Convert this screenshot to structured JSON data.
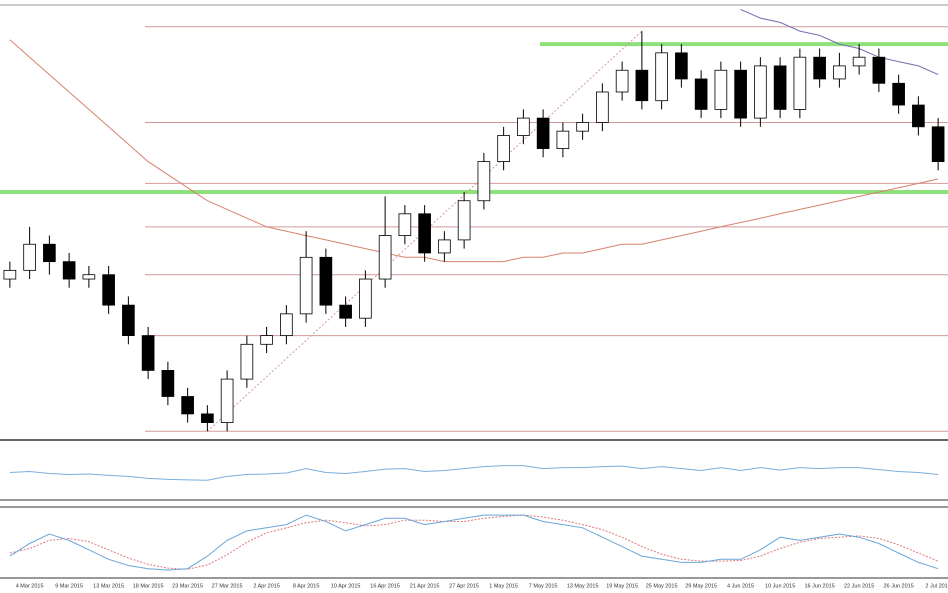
{
  "chart_data": {
    "type": "candlestick",
    "x": [
      null,
      "4 Mar 2015",
      null,
      "9 Mar 2015",
      null,
      "13 Mar 2015",
      null,
      "18 Mar 2015",
      null,
      "23 Mar 2015",
      null,
      "27 Mar 2015",
      null,
      "2 Apr 2015",
      null,
      "8 Apr 2015",
      null,
      "10 Apr 2015",
      null,
      "16 Apr 2015",
      null,
      "21 Apr 2015",
      null,
      "27 Apr 2015",
      null,
      "1 May 2015",
      null,
      "7 May 2015",
      null,
      "13 May 2015",
      null,
      "19 May 2015",
      null,
      "25 May 2015",
      null,
      "29 May 2015",
      null,
      "4 Jun 2015",
      null,
      "10 Jun 2015",
      null,
      "16 Jun 2015",
      null,
      "22 Jun 2015",
      null,
      "26 Jun 2015",
      null,
      "2 Jul 2015"
    ],
    "open": [
      37,
      39,
      45,
      41,
      37,
      38,
      31,
      24,
      16,
      10,
      6,
      4,
      14,
      22,
      24,
      29,
      42,
      31,
      28,
      37,
      47,
      52,
      43,
      46,
      55,
      64,
      70,
      74,
      67,
      71,
      73,
      80,
      85,
      78,
      89,
      83,
      76,
      85,
      74,
      86,
      76,
      88,
      83,
      86,
      88,
      82,
      77,
      72
    ],
    "high": [
      41,
      49,
      47,
      43,
      40,
      40,
      33,
      26,
      18,
      12,
      8,
      16,
      24,
      26,
      31,
      48,
      44,
      33,
      39,
      56,
      54,
      54,
      48,
      57,
      66,
      72,
      76,
      76,
      73,
      75,
      82,
      87,
      94,
      91,
      91,
      85,
      87,
      87,
      88,
      88,
      90,
      90,
      89,
      91,
      90,
      84,
      79,
      74
    ],
    "low": [
      35,
      37,
      38,
      35,
      35,
      29,
      22,
      14,
      8,
      4,
      2,
      2,
      12,
      20,
      22,
      27,
      29,
      26,
      26,
      35,
      45,
      41,
      41,
      44,
      53,
      62,
      68,
      65,
      65,
      69,
      71,
      78,
      76,
      76,
      81,
      74,
      74,
      72,
      72,
      74,
      74,
      81,
      81,
      84,
      80,
      75,
      70,
      62
    ],
    "close": [
      39,
      45,
      41,
      37,
      38,
      31,
      24,
      16,
      10,
      6,
      4,
      14,
      22,
      24,
      29,
      42,
      31,
      28,
      37,
      47,
      52,
      43,
      46,
      55,
      64,
      70,
      74,
      67,
      71,
      73,
      80,
      85,
      78,
      89,
      83,
      76,
      85,
      74,
      86,
      76,
      88,
      83,
      86,
      88,
      82,
      77,
      72,
      64
    ],
    "up_color": "#ffffff",
    "down_color": "#000000",
    "ylim": [
      0,
      100
    ],
    "levels": {
      "color": "#d49a9a",
      "values": [
        95,
        73,
        59,
        49,
        38,
        24,
        2
      ]
    },
    "support": {
      "color": "#8ee07a",
      "values": [
        57,
        91
      ]
    },
    "moving_average": {
      "color": "#d9826e",
      "values": [
        92,
        88,
        84,
        80,
        76,
        72,
        68,
        64,
        61,
        58,
        55,
        53,
        51,
        49,
        48,
        47,
        46,
        45,
        44,
        43,
        42,
        42,
        41,
        41,
        41,
        41,
        42,
        42,
        43,
        43,
        44,
        45,
        45,
        46,
        47,
        48,
        49,
        50,
        51,
        52,
        53,
        54,
        55,
        56,
        57,
        58,
        59,
        60
      ]
    },
    "trendline": {
      "color": "#7070b0",
      "values": [
        null,
        null,
        null,
        null,
        null,
        null,
        null,
        null,
        null,
        null,
        null,
        null,
        null,
        null,
        null,
        null,
        null,
        null,
        null,
        null,
        null,
        null,
        null,
        null,
        null,
        null,
        null,
        null,
        null,
        null,
        null,
        null,
        null,
        null,
        null,
        null,
        null,
        99,
        97,
        96,
        94,
        93,
        91,
        90,
        88,
        87,
        86,
        84
      ]
    },
    "rsi": {
      "color": "#7aaede",
      "ylim": [
        0,
        100
      ],
      "values": [
        50,
        52,
        48,
        46,
        47,
        44,
        42,
        38,
        36,
        35,
        34,
        42,
        46,
        47,
        49,
        58,
        50,
        48,
        52,
        57,
        58,
        52,
        54,
        58,
        62,
        64,
        64,
        58,
        60,
        60,
        62,
        63,
        58,
        62,
        58,
        54,
        60,
        54,
        60,
        55,
        60,
        58,
        60,
        60,
        56,
        52,
        50,
        46
      ]
    },
    "stochastic": {
      "ylim": [
        0,
        100
      ],
      "k": {
        "color": "#6aa6da",
        "values": [
          30,
          50,
          65,
          55,
          40,
          25,
          15,
          10,
          8,
          10,
          30,
          55,
          70,
          75,
          80,
          95,
          85,
          70,
          80,
          90,
          90,
          80,
          85,
          90,
          95,
          95,
          95,
          85,
          80,
          75,
          60,
          45,
          30,
          25,
          20,
          20,
          25,
          25,
          40,
          60,
          55,
          60,
          65,
          60,
          50,
          35,
          20,
          10
        ]
      },
      "d": {
        "color": "#e07a7a",
        "values": [
          35,
          42,
          55,
          58,
          53,
          40,
          27,
          17,
          11,
          9,
          16,
          32,
          52,
          67,
          75,
          83,
          87,
          83,
          78,
          80,
          87,
          87,
          85,
          85,
          90,
          93,
          95,
          92,
          87,
          80,
          72,
          60,
          45,
          33,
          25,
          22,
          22,
          23,
          30,
          42,
          52,
          58,
          60,
          62,
          58,
          48,
          35,
          22
        ]
      }
    }
  }
}
